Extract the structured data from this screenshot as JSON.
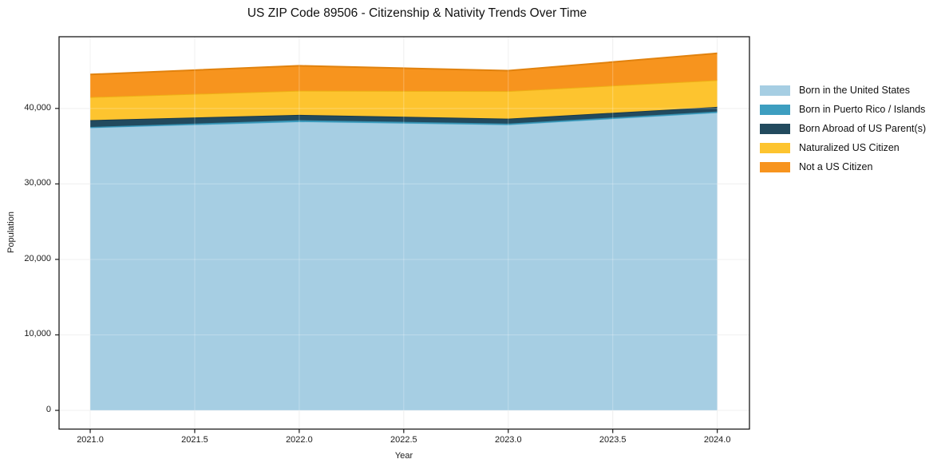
{
  "figure": {
    "background_color": "#ffffff",
    "axes_border_color": "#1a1a1a",
    "gridline_color": "#ebebeb"
  },
  "chart_data": {
    "type": "area",
    "stacked": true,
    "title": "US ZIP Code 89506 - Citizenship & Nativity Trends Over Time",
    "xlabel": "Year",
    "ylabel": "Population",
    "x": [
      2021,
      2022,
      2023,
      2024
    ],
    "xlim": [
      2020.851,
      2024.154
    ],
    "ylim": [
      -2480,
      49500
    ],
    "x_tick_values": [
      2021.0,
      2021.5,
      2022.0,
      2022.5,
      2023.0,
      2023.5,
      2024.0
    ],
    "x_tick_labels": [
      "2021.0",
      "2021.5",
      "2022.0",
      "2022.5",
      "2023.0",
      "2023.5",
      "2024.0"
    ],
    "y_tick_values": [
      0,
      10000,
      20000,
      30000,
      40000
    ],
    "y_tick_labels": [
      "0",
      "10,000",
      "20,000",
      "30,000",
      "40,000"
    ],
    "grid": true,
    "legend_position": "right",
    "series": [
      {
        "name": "Born in the United States",
        "color": "#a6cee3",
        "edge_color": "#97c6de",
        "values": [
          37400,
          38200,
          37800,
          39400
        ]
      },
      {
        "name": "Born in Puerto Rico / Islands",
        "color": "#3d9ec0",
        "edge_color": "#338aa9",
        "values": [
          150,
          250,
          200,
          200
        ]
      },
      {
        "name": "Born Abroad of US Parent(s)",
        "color": "#224a5e",
        "edge_color": "#1a3a4b",
        "values": [
          900,
          700,
          650,
          600
        ]
      },
      {
        "name": "Naturalized US Citizen",
        "color": "#fdc42f",
        "edge_color": "#eeb015",
        "values": [
          3050,
          3200,
          3650,
          3550
        ]
      },
      {
        "name": "Not a US Citizen",
        "color": "#f7941e",
        "edge_color": "#e1820e",
        "values": [
          3000,
          3300,
          2700,
          3550
        ]
      }
    ],
    "totals": [
      44500,
      45650,
      45000,
      47300
    ]
  }
}
